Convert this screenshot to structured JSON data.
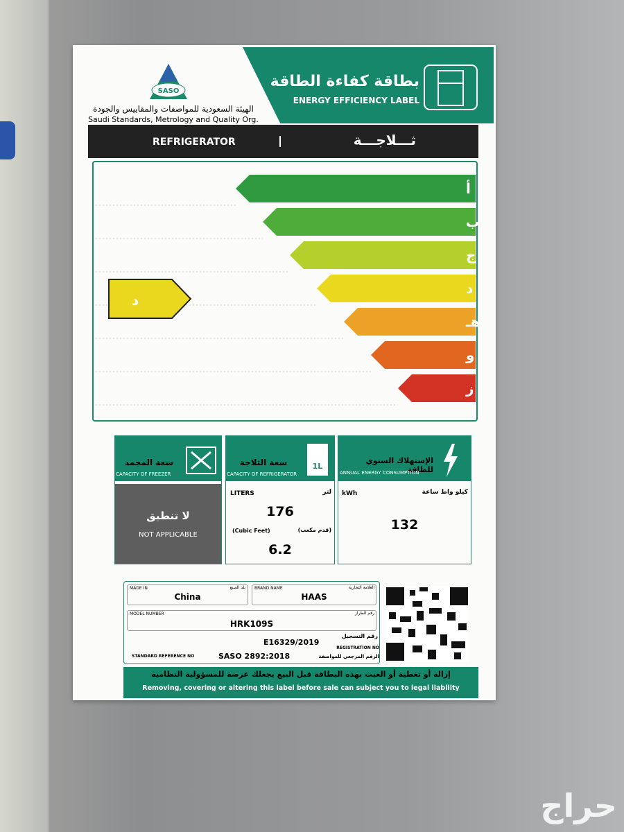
{
  "header": {
    "logo": "SASO",
    "org_ar": "الهيئة السعودية للمواصفات والمقاييس والجودة",
    "org_en": "Saudi Standards, Metrology and Quality Org.",
    "title_ar": "بطاقة كفاءة الطاقة",
    "title_en": "ENERGY EFFICIENCY LABEL"
  },
  "product": {
    "en": "REFRIGERATOR",
    "ar": "ثـــلاجـــة"
  },
  "energy_classes": {
    "classes": [
      {
        "label": "أ",
        "color": "#2f9a3f"
      },
      {
        "label": "ب",
        "color": "#4ead3a"
      },
      {
        "label": "ج",
        "color": "#b5d02b"
      },
      {
        "label": "د",
        "color": "#ead81e"
      },
      {
        "label": "هـ",
        "color": "#eca227"
      },
      {
        "label": "و",
        "color": "#e1661f"
      },
      {
        "label": "ز",
        "color": "#d23325"
      }
    ],
    "rating": "د",
    "rating_color": "#ead81e"
  },
  "panels": {
    "freezer": {
      "title_ar": "سعة المجمد",
      "title_en": "CAPACITY OF FREEZER",
      "value_ar": "لا تنطبق",
      "value_en": "NOT APPLICABLE"
    },
    "refrigerator": {
      "title_ar": "سعة الثلاجة",
      "title_en": "CAPACITY OF REFRIGERATOR",
      "icon": "1L",
      "unit_en": "LITERS",
      "unit_ar": "لتر",
      "liters": 176,
      "alt_unit_en": "(Cubic Feet)",
      "alt_unit_ar": "(قدم مكعب)",
      "cubic_feet": 6.2
    },
    "energy": {
      "title_ar": "الإستهلاك السنوي للطاقة",
      "title_en": "ANNUAL ENERGY CONSUMPTION",
      "unit_en": "kWh",
      "unit_ar": "كيلو واط ساعة",
      "value": 132
    }
  },
  "details": {
    "made_in": {
      "label_en": "MADE IN",
      "label_ar": "بلد الصنع",
      "value": "China"
    },
    "brand": {
      "label_en": "BRAND NAME",
      "label_ar": "العلامة التجارية",
      "value": "HAAS"
    },
    "model": {
      "label_en": "MODEL NUMBER",
      "label_ar": "رقم الطراز",
      "value": "HRK109S"
    },
    "registration": {
      "label_ar": "رقم التسجيل",
      "label_en": "REGISTRATION NO",
      "value": "E16329/2019"
    },
    "standard": {
      "label_en": "STANDARD REFERENCE NO",
      "value": "SASO 2892:2018",
      "label_ar": "الرقم المرجعي للمواصفة"
    }
  },
  "footer": {
    "ar": "إزالة أو تغطية أو العبث بهذه البطاقة قبل البيع يجعلك عرضة للمسؤولية النظامية",
    "en": "Removing, covering or altering this label before sale can subject you to legal liability"
  },
  "watermark": "حراج"
}
